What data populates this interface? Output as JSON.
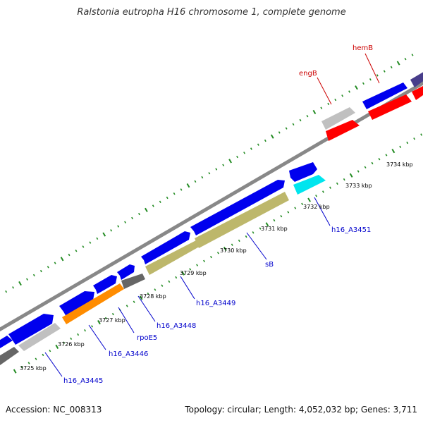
{
  "title": "Ralstonia eutropha H16 chromosome 1, complete genome",
  "footer": {
    "accession": "Accession: NC_008313",
    "summary": "Topology: circular; Length: 4,052,032 bp; Genes: 3,711"
  },
  "ticks": [
    {
      "label": "3725 kbp",
      "kbp": 3725
    },
    {
      "label": "3726 kbp",
      "kbp": 3726
    },
    {
      "label": "3727 kbp",
      "kbp": 3727
    },
    {
      "label": "3728 kbp",
      "kbp": 3728
    },
    {
      "label": "3729 kbp",
      "kbp": 3729
    },
    {
      "label": "3730 kbp",
      "kbp": 3730
    },
    {
      "label": "3731 kbp",
      "kbp": 3731
    },
    {
      "label": "3732 kbp",
      "kbp": 3732
    },
    {
      "label": "3733 kbp",
      "kbp": 3733
    },
    {
      "label": "3734 kbp",
      "kbp": 3734
    }
  ],
  "gene_labels": [
    {
      "text": "h16_A3445",
      "color": "#0000cc"
    },
    {
      "text": "h16_A3446",
      "color": "#0000cc"
    },
    {
      "text": "rpoE5",
      "color": "#0000cc"
    },
    {
      "text": "h16_A3448",
      "color": "#0000cc"
    },
    {
      "text": "h16_A3449",
      "color": "#0000cc"
    },
    {
      "text": "sB",
      "color": "#0000cc"
    },
    {
      "text": "h16_A3451",
      "color": "#0000cc"
    },
    {
      "text": "engB",
      "color": "#cc0000"
    },
    {
      "text": "hemB",
      "color": "#cc0000"
    }
  ],
  "colors": {
    "backbone": "#888888",
    "cds": "#0000ee",
    "gene_grey": "#c0c0c0",
    "gene_dark": "#666666",
    "gene_orange": "#ff8c00",
    "gene_khaki": "#bdb76b",
    "gene_cyan": "#00ffff",
    "gene_red": "#ff0000",
    "tick_green": "#228b22"
  }
}
